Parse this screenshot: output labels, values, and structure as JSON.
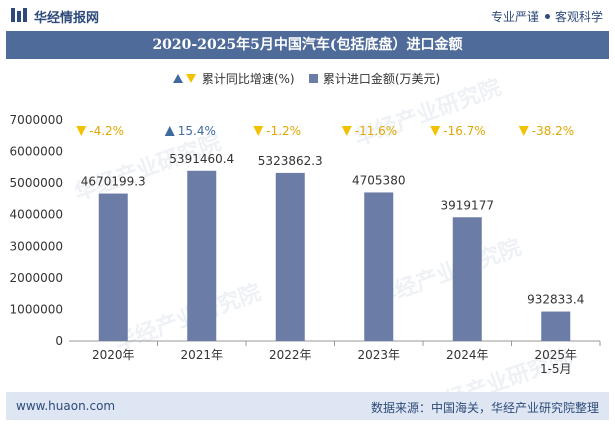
{
  "header": {
    "brand": "华经情报网",
    "tag_left": "专业严谨",
    "tag_right": "客观科学"
  },
  "watermark": "华经产业研究院",
  "colors": {
    "bar": "#6b7ca6",
    "up": "#3e6aa0",
    "down": "#f2c200",
    "title_bg": "#4f6b99",
    "footer_bg": "#dde6f2"
  },
  "chart_data": {
    "type": "bar",
    "title": "2020-2025年5月中国汽车(包括底盘）进口金额",
    "legend": {
      "growth": "累计同比增速(%)",
      "amount": "累计进口金额(万美元)"
    },
    "categories": [
      "2020年",
      "2021年",
      "2022年",
      "2023年",
      "2024年",
      "2025年\n1-5月"
    ],
    "series": [
      {
        "name": "累计进口金额(万美元)",
        "values": [
          4670199.3,
          5391460.4,
          5323862.3,
          4705380,
          3919177,
          932833.4
        ],
        "labels": [
          "4670199.3",
          "5391460.4",
          "5323862.3",
          "4705380",
          "3919177",
          "932833.4"
        ]
      },
      {
        "name": "累计同比增速(%)",
        "values": [
          -4.2,
          15.4,
          -1.2,
          -11.6,
          -16.7,
          -38.2
        ],
        "labels": [
          "-4.2%",
          "15.4%",
          "-1.2%",
          "-11.6%",
          "-16.7%",
          "-38.2%"
        ]
      }
    ],
    "ylim": [
      0,
      7000000
    ],
    "yticks": [
      "0",
      "1000000",
      "2000000",
      "3000000",
      "4000000",
      "5000000",
      "6000000",
      "7000000"
    ],
    "grid": false,
    "legend_position": "top"
  },
  "footer": {
    "site": "www.huaon.com",
    "source": "数据来源：中国海关，华经产业研究院整理"
  }
}
